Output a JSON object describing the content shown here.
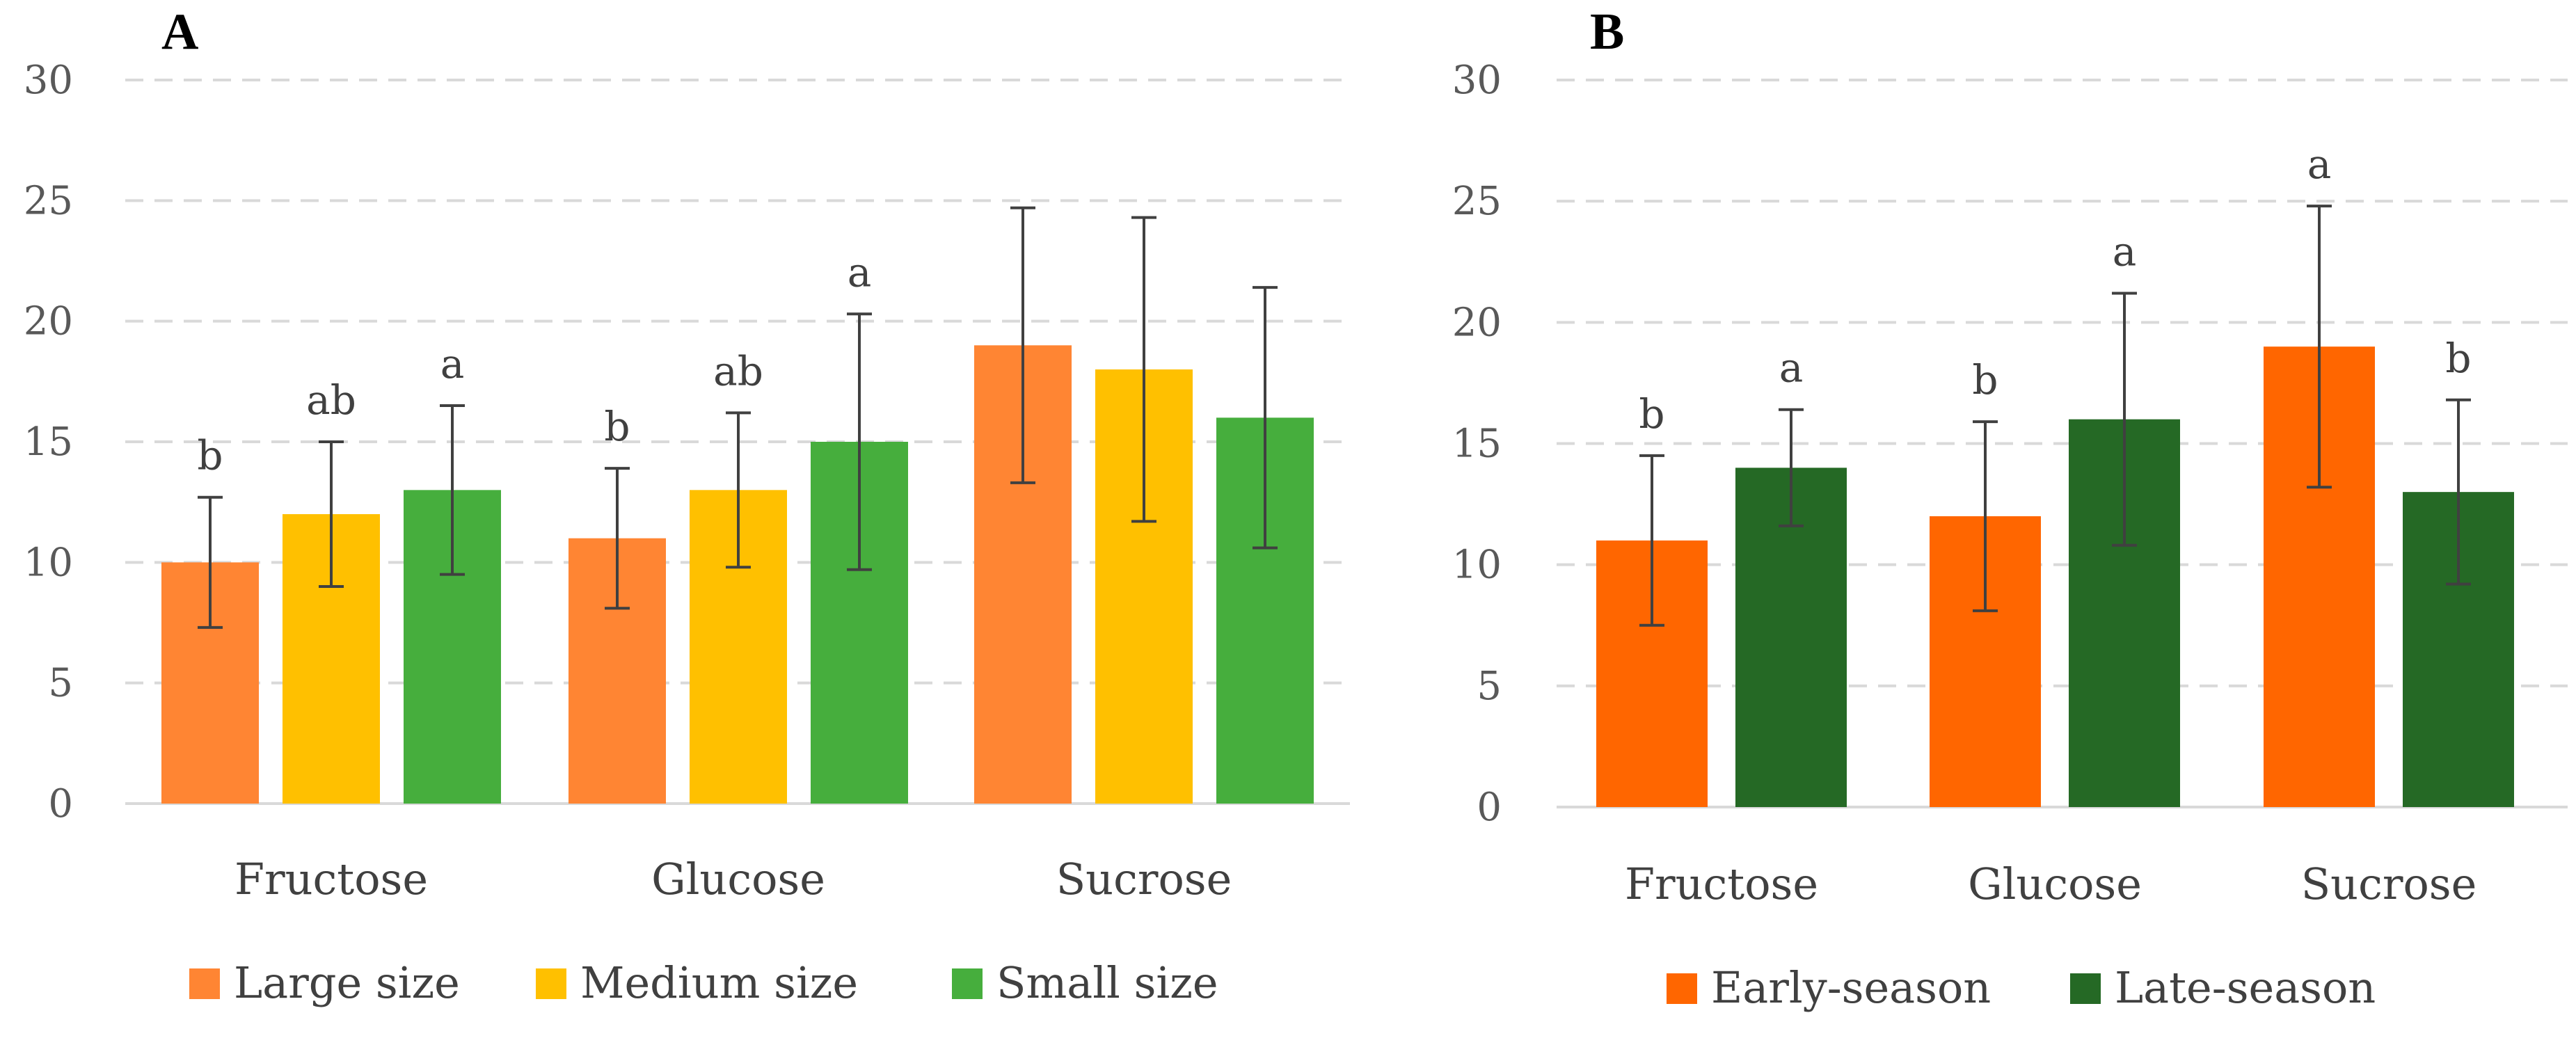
{
  "chart_data": [
    {
      "panel": "A",
      "type": "bar",
      "categories": [
        "Fructose",
        "Glucose",
        "Sucrose"
      ],
      "series": [
        {
          "name": "Large size",
          "color": "#FF8533",
          "values": [
            10,
            11,
            19
          ],
          "errors": [
            2.7,
            2.9,
            5.7
          ],
          "letters": [
            "b",
            "b",
            ""
          ]
        },
        {
          "name": "Medium size",
          "color": "#FFC000",
          "values": [
            12,
            13,
            18
          ],
          "errors": [
            3.0,
            3.2,
            6.3
          ],
          "letters": [
            "ab",
            "ab",
            ""
          ]
        },
        {
          "name": "Small size",
          "color": "#46AE3D",
          "values": [
            13,
            15,
            16
          ],
          "errors": [
            3.5,
            5.3,
            5.4
          ],
          "letters": [
            "a",
            "a",
            ""
          ]
        }
      ],
      "ylim": [
        0,
        30
      ],
      "yticks": [
        "0",
        "5",
        "10",
        "15",
        "20",
        "25",
        "30"
      ],
      "grid": true,
      "legend": "bottom"
    },
    {
      "panel": "B",
      "type": "bar",
      "categories": [
        "Fructose",
        "Glucose",
        "Sucrose"
      ],
      "series": [
        {
          "name": "Early-season",
          "color": "#FF6600",
          "values": [
            11,
            12,
            19
          ],
          "errors": [
            3.5,
            3.9,
            5.8
          ],
          "letters": [
            "b",
            "b",
            "a"
          ]
        },
        {
          "name": "Late-season",
          "color": "#256925",
          "values": [
            14,
            16,
            13
          ],
          "errors": [
            2.4,
            5.2,
            3.8
          ],
          "letters": [
            "a",
            "a",
            "b"
          ]
        }
      ],
      "ylim": [
        0,
        30
      ],
      "yticks": [
        "0",
        "5",
        "10",
        "15",
        "20",
        "25",
        "30"
      ],
      "grid": true,
      "legend": "bottom"
    }
  ]
}
